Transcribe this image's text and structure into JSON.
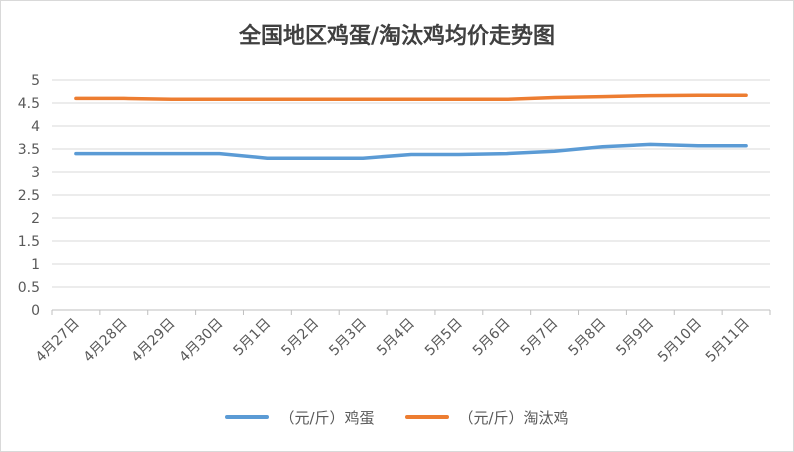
{
  "chart_data": {
    "type": "line",
    "title": "全国地区鸡蛋/淘汰鸡均价走势图",
    "categories": [
      "4月27日",
      "4月28日",
      "4月29日",
      "4月30日",
      "5月1日",
      "5月2日",
      "5月3日",
      "5月4日",
      "5月5日",
      "5月6日",
      "5月7日",
      "5月8日",
      "5月9日",
      "5月10日",
      "5月11日"
    ],
    "series": [
      {
        "name": "（元/斤）鸡蛋",
        "color": "#5b9bd5",
        "values": [
          3.4,
          3.4,
          3.4,
          3.4,
          3.3,
          3.3,
          3.3,
          3.38,
          3.38,
          3.4,
          3.45,
          3.55,
          3.6,
          3.57,
          3.57
        ]
      },
      {
        "name": "（元/斤）淘汰鸡",
        "color": "#ed7d31",
        "values": [
          4.6,
          4.6,
          4.58,
          4.58,
          4.58,
          4.58,
          4.58,
          4.58,
          4.58,
          4.58,
          4.62,
          4.64,
          4.66,
          4.67,
          4.67
        ]
      }
    ],
    "y_ticks": [
      "0",
      "0.5",
      "1",
      "1.5",
      "2",
      "2.5",
      "3",
      "3.5",
      "4",
      "4.5",
      "5"
    ],
    "ylim": [
      0,
      5
    ],
    "grid": true,
    "legend_position": "bottom"
  }
}
